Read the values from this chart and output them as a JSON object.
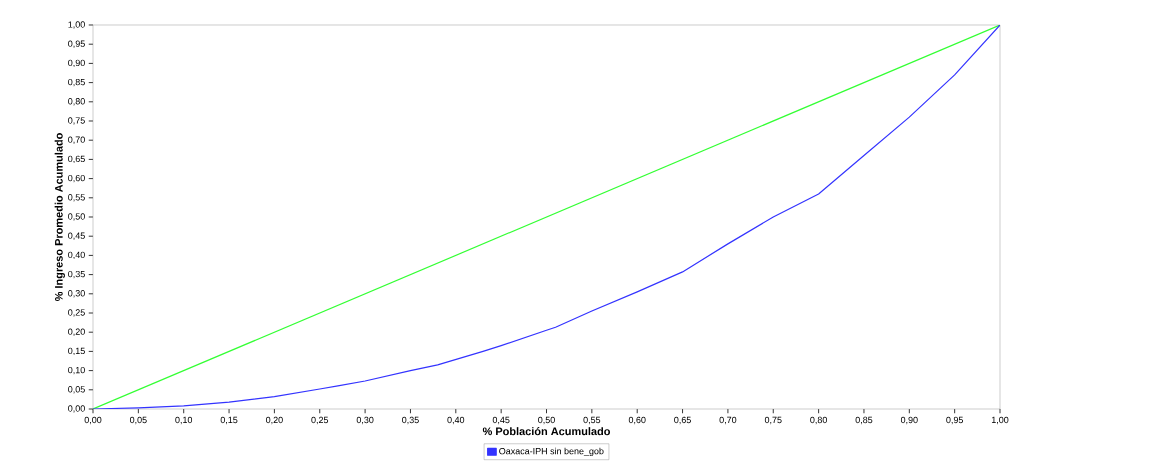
{
  "chart_data": {
    "type": "line",
    "xlabel": "% Población Acumulado",
    "ylabel": "% Ingreso Promedio Acumulado",
    "xlim": [
      0,
      1
    ],
    "ylim": [
      0,
      1
    ],
    "xticks": [
      {
        "value": 0,
        "label": "0,00"
      },
      {
        "value": 0.05,
        "label": "0,05"
      },
      {
        "value": 0.1,
        "label": "0,10"
      },
      {
        "value": 0.15,
        "label": "0,15"
      },
      {
        "value": 0.2,
        "label": "0,20"
      },
      {
        "value": 0.25,
        "label": "0,25"
      },
      {
        "value": 0.3,
        "label": "0,30"
      },
      {
        "value": 0.35,
        "label": "0,35"
      },
      {
        "value": 0.4,
        "label": "0,40"
      },
      {
        "value": 0.45,
        "label": "0,45"
      },
      {
        "value": 0.5,
        "label": "0,50"
      },
      {
        "value": 0.55,
        "label": "0,55"
      },
      {
        "value": 0.6,
        "label": "0,60"
      },
      {
        "value": 0.65,
        "label": "0,65"
      },
      {
        "value": 0.7,
        "label": "0,70"
      },
      {
        "value": 0.75,
        "label": "0,75"
      },
      {
        "value": 0.8,
        "label": "0,80"
      },
      {
        "value": 0.85,
        "label": "0,85"
      },
      {
        "value": 0.9,
        "label": "0,90"
      },
      {
        "value": 0.95,
        "label": "0,95"
      },
      {
        "value": 1,
        "label": "1,00"
      }
    ],
    "yticks": [
      {
        "value": 0,
        "label": "0,00"
      },
      {
        "value": 0.05,
        "label": "0,05"
      },
      {
        "value": 0.1,
        "label": "0,10"
      },
      {
        "value": 0.15,
        "label": "0,15"
      },
      {
        "value": 0.2,
        "label": "0,20"
      },
      {
        "value": 0.25,
        "label": "0,25"
      },
      {
        "value": 0.3,
        "label": "0,30"
      },
      {
        "value": 0.35,
        "label": "0,35"
      },
      {
        "value": 0.4,
        "label": "0,40"
      },
      {
        "value": 0.45,
        "label": "0,45"
      },
      {
        "value": 0.5,
        "label": "0,50"
      },
      {
        "value": 0.55,
        "label": "0,55"
      },
      {
        "value": 0.6,
        "label": "0,60"
      },
      {
        "value": 0.65,
        "label": "0,65"
      },
      {
        "value": 0.7,
        "label": "0,70"
      },
      {
        "value": 0.75,
        "label": "0,75"
      },
      {
        "value": 0.8,
        "label": "0,80"
      },
      {
        "value": 0.85,
        "label": "0,85"
      },
      {
        "value": 0.9,
        "label": "0,90"
      },
      {
        "value": 0.95,
        "label": "0,95"
      },
      {
        "value": 1,
        "label": "1,00"
      }
    ],
    "legend": "bottom",
    "grid": false,
    "marker": "none",
    "line_style": "solid",
    "series": [
      {
        "color": "#33ff33",
        "x": [
          0,
          1
        ],
        "values": [
          0,
          1
        ]
      },
      {
        "name": "Oaxaca-IPH sin bene_gob",
        "color": "#3333ff",
        "x": [
          0,
          0.05,
          0.1,
          0.15,
          0.2,
          0.25,
          0.27,
          0.3,
          0.35,
          0.38,
          0.43,
          0.45,
          0.5,
          0.51,
          0.55,
          0.6,
          0.65,
          0.7,
          0.75,
          0.8,
          0.82,
          0.85,
          0.9,
          0.95,
          1
        ],
        "values": [
          0,
          0.003,
          0.008,
          0.018,
          0.032,
          0.052,
          0.06,
          0.073,
          0.1,
          0.115,
          0.15,
          0.165,
          0.205,
          0.213,
          0.255,
          0.305,
          0.357,
          0.43,
          0.5,
          0.56,
          0.6,
          0.66,
          0.76,
          0.87,
          1
        ]
      }
    ]
  }
}
